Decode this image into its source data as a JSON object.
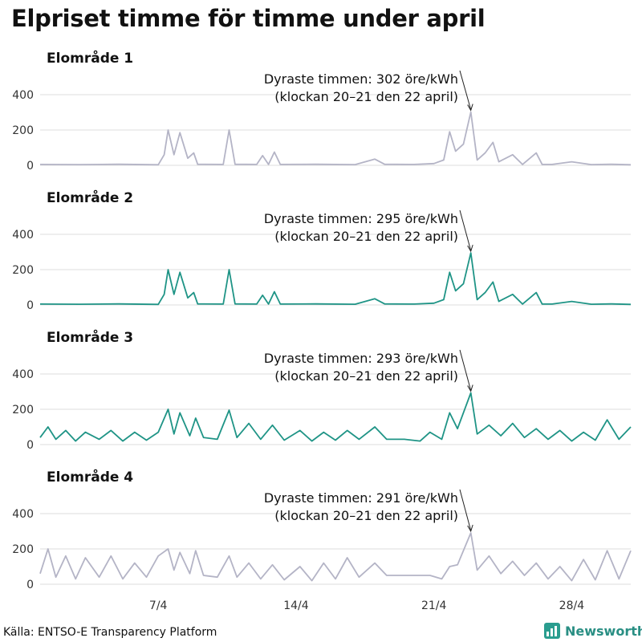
{
  "title": "Elpriset timme för timme under april",
  "source": "Källa: ENTSO-E Transparency Platform",
  "brand": "Newsworthy",
  "colors": {
    "gray": "#b4b4c6",
    "teal": "#1f9486",
    "grid": "#dcdcdc",
    "brand": "#2a9d8f"
  },
  "chart_data": [
    {
      "type": "line",
      "title": "Elområde 1",
      "color": "gray",
      "ylim": [
        0,
        400
      ],
      "yticks": [
        0,
        200,
        400
      ],
      "annotation": {
        "line1": "Dyraste timmen: 302 öre/kWh",
        "line2": "(klockan 20–21 den 22 april)"
      },
      "peak": {
        "day": 22.875,
        "value": 302
      },
      "series": [
        {
          "points": [
            [
              1,
              5
            ],
            [
              3,
              4
            ],
            [
              5,
              6
            ],
            [
              7,
              3
            ],
            [
              7.3,
              60
            ],
            [
              7.5,
              200
            ],
            [
              7.8,
              60
            ],
            [
              8.1,
              185
            ],
            [
              8.5,
              40
            ],
            [
              8.8,
              70
            ],
            [
              9,
              6
            ],
            [
              10.3,
              5
            ],
            [
              10.6,
              200
            ],
            [
              10.9,
              6
            ],
            [
              12,
              5
            ],
            [
              12.3,
              55
            ],
            [
              12.6,
              5
            ],
            [
              12.9,
              75
            ],
            [
              13.2,
              5
            ],
            [
              15,
              6
            ],
            [
              17,
              4
            ],
            [
              18,
              35
            ],
            [
              18.5,
              6
            ],
            [
              20,
              5
            ],
            [
              21,
              10
            ],
            [
              21.5,
              30
            ],
            [
              21.8,
              190
            ],
            [
              22.1,
              80
            ],
            [
              22.5,
              120
            ],
            [
              22.875,
              302
            ],
            [
              23.2,
              30
            ],
            [
              23.6,
              70
            ],
            [
              24,
              130
            ],
            [
              24.3,
              20
            ],
            [
              25,
              60
            ],
            [
              25.5,
              5
            ],
            [
              26.2,
              70
            ],
            [
              26.5,
              5
            ],
            [
              27,
              5
            ],
            [
              28,
              20
            ],
            [
              29,
              4
            ],
            [
              30,
              6
            ],
            [
              31,
              3
            ]
          ]
        }
      ]
    },
    {
      "type": "line",
      "title": "Elområde 2",
      "color": "teal",
      "ylim": [
        0,
        400
      ],
      "yticks": [
        0,
        200,
        400
      ],
      "annotation": {
        "line1": "Dyraste timmen: 295 öre/kWh",
        "line2": "(klockan 20–21 den 22 april)"
      },
      "peak": {
        "day": 22.875,
        "value": 295
      },
      "series": [
        {
          "points": [
            [
              1,
              5
            ],
            [
              3,
              4
            ],
            [
              5,
              6
            ],
            [
              7,
              3
            ],
            [
              7.3,
              60
            ],
            [
              7.5,
              200
            ],
            [
              7.8,
              60
            ],
            [
              8.1,
              185
            ],
            [
              8.5,
              40
            ],
            [
              8.8,
              70
            ],
            [
              9,
              6
            ],
            [
              10.3,
              5
            ],
            [
              10.6,
              200
            ],
            [
              10.9,
              6
            ],
            [
              12,
              5
            ],
            [
              12.3,
              55
            ],
            [
              12.6,
              5
            ],
            [
              12.9,
              75
            ],
            [
              13.2,
              5
            ],
            [
              15,
              6
            ],
            [
              17,
              4
            ],
            [
              18,
              35
            ],
            [
              18.5,
              6
            ],
            [
              20,
              5
            ],
            [
              21,
              10
            ],
            [
              21.5,
              30
            ],
            [
              21.8,
              185
            ],
            [
              22.1,
              80
            ],
            [
              22.5,
              120
            ],
            [
              22.875,
              295
            ],
            [
              23.2,
              30
            ],
            [
              23.6,
              70
            ],
            [
              24,
              130
            ],
            [
              24.3,
              20
            ],
            [
              25,
              60
            ],
            [
              25.5,
              5
            ],
            [
              26.2,
              70
            ],
            [
              26.5,
              5
            ],
            [
              27,
              5
            ],
            [
              28,
              20
            ],
            [
              29,
              4
            ],
            [
              30,
              6
            ],
            [
              31,
              3
            ]
          ]
        }
      ]
    },
    {
      "type": "line",
      "title": "Elområde 3",
      "color": "teal",
      "ylim": [
        0,
        400
      ],
      "yticks": [
        0,
        200,
        400
      ],
      "annotation": {
        "line1": "Dyraste timmen: 293 öre/kWh",
        "line2": "(klockan 20–21 den 22 april)"
      },
      "peak": {
        "day": 22.875,
        "value": 293
      },
      "series": [
        {
          "points": [
            [
              1,
              40
            ],
            [
              1.4,
              100
            ],
            [
              1.8,
              30
            ],
            [
              2.3,
              80
            ],
            [
              2.8,
              20
            ],
            [
              3.3,
              70
            ],
            [
              4,
              30
            ],
            [
              4.6,
              80
            ],
            [
              5.2,
              20
            ],
            [
              5.8,
              70
            ],
            [
              6.4,
              25
            ],
            [
              7,
              70
            ],
            [
              7.5,
              200
            ],
            [
              7.8,
              60
            ],
            [
              8.1,
              180
            ],
            [
              8.6,
              50
            ],
            [
              8.9,
              150
            ],
            [
              9.3,
              40
            ],
            [
              10,
              30
            ],
            [
              10.6,
              195
            ],
            [
              11,
              40
            ],
            [
              11.6,
              120
            ],
            [
              12.2,
              30
            ],
            [
              12.8,
              110
            ],
            [
              13.4,
              25
            ],
            [
              14.2,
              80
            ],
            [
              14.8,
              20
            ],
            [
              15.4,
              70
            ],
            [
              16,
              25
            ],
            [
              16.6,
              80
            ],
            [
              17.2,
              30
            ],
            [
              18,
              100
            ],
            [
              18.6,
              30
            ],
            [
              19.5,
              30
            ],
            [
              20.3,
              20
            ],
            [
              20.8,
              70
            ],
            [
              21.4,
              30
            ],
            [
              21.8,
              180
            ],
            [
              22.2,
              90
            ],
            [
              22.875,
              293
            ],
            [
              23.2,
              60
            ],
            [
              23.8,
              110
            ],
            [
              24.4,
              50
            ],
            [
              25,
              120
            ],
            [
              25.6,
              40
            ],
            [
              26.2,
              90
            ],
            [
              26.8,
              30
            ],
            [
              27.4,
              80
            ],
            [
              28,
              20
            ],
            [
              28.6,
              70
            ],
            [
              29.2,
              25
            ],
            [
              29.8,
              140
            ],
            [
              30.4,
              30
            ],
            [
              31,
              100
            ]
          ]
        }
      ]
    },
    {
      "type": "line",
      "title": "Elområde 4",
      "color": "gray",
      "ylim": [
        0,
        400
      ],
      "yticks": [
        0,
        200,
        400
      ],
      "annotation": {
        "line1": "Dyraste timmen: 291 öre/kWh",
        "line2": "(klockan 20–21 den 22 april)"
      },
      "peak": {
        "day": 22.875,
        "value": 291
      },
      "series": [
        {
          "points": [
            [
              1,
              60
            ],
            [
              1.4,
              200
            ],
            [
              1.8,
              40
            ],
            [
              2.3,
              160
            ],
            [
              2.8,
              30
            ],
            [
              3.3,
              150
            ],
            [
              4,
              40
            ],
            [
              4.6,
              160
            ],
            [
              5.2,
              30
            ],
            [
              5.8,
              120
            ],
            [
              6.4,
              40
            ],
            [
              7,
              160
            ],
            [
              7.5,
              200
            ],
            [
              7.8,
              80
            ],
            [
              8.1,
              180
            ],
            [
              8.6,
              60
            ],
            [
              8.9,
              190
            ],
            [
              9.3,
              50
            ],
            [
              10,
              40
            ],
            [
              10.6,
              160
            ],
            [
              11,
              40
            ],
            [
              11.6,
              120
            ],
            [
              12.2,
              30
            ],
            [
              12.8,
              110
            ],
            [
              13.4,
              25
            ],
            [
              14.2,
              100
            ],
            [
              14.8,
              20
            ],
            [
              15.4,
              120
            ],
            [
              16,
              30
            ],
            [
              16.6,
              150
            ],
            [
              17.2,
              40
            ],
            [
              18,
              120
            ],
            [
              18.6,
              50
            ],
            [
              19.5,
              50
            ],
            [
              20.3,
              50
            ],
            [
              20.8,
              50
            ],
            [
              21.4,
              30
            ],
            [
              21.8,
              100
            ],
            [
              22.2,
              110
            ],
            [
              22.875,
              291
            ],
            [
              23.2,
              80
            ],
            [
              23.8,
              160
            ],
            [
              24.4,
              60
            ],
            [
              25,
              130
            ],
            [
              25.6,
              50
            ],
            [
              26.2,
              120
            ],
            [
              26.8,
              30
            ],
            [
              27.4,
              100
            ],
            [
              28,
              20
            ],
            [
              28.6,
              140
            ],
            [
              29.2,
              25
            ],
            [
              29.8,
              190
            ],
            [
              30.4,
              30
            ],
            [
              31,
              190
            ]
          ]
        }
      ]
    }
  ],
  "xticks": [
    {
      "day": 7,
      "label": "7/4"
    },
    {
      "day": 14,
      "label": "14/4"
    },
    {
      "day": 21,
      "label": "21/4"
    },
    {
      "day": 28,
      "label": "28/4"
    }
  ],
  "xlim": [
    1,
    31
  ]
}
